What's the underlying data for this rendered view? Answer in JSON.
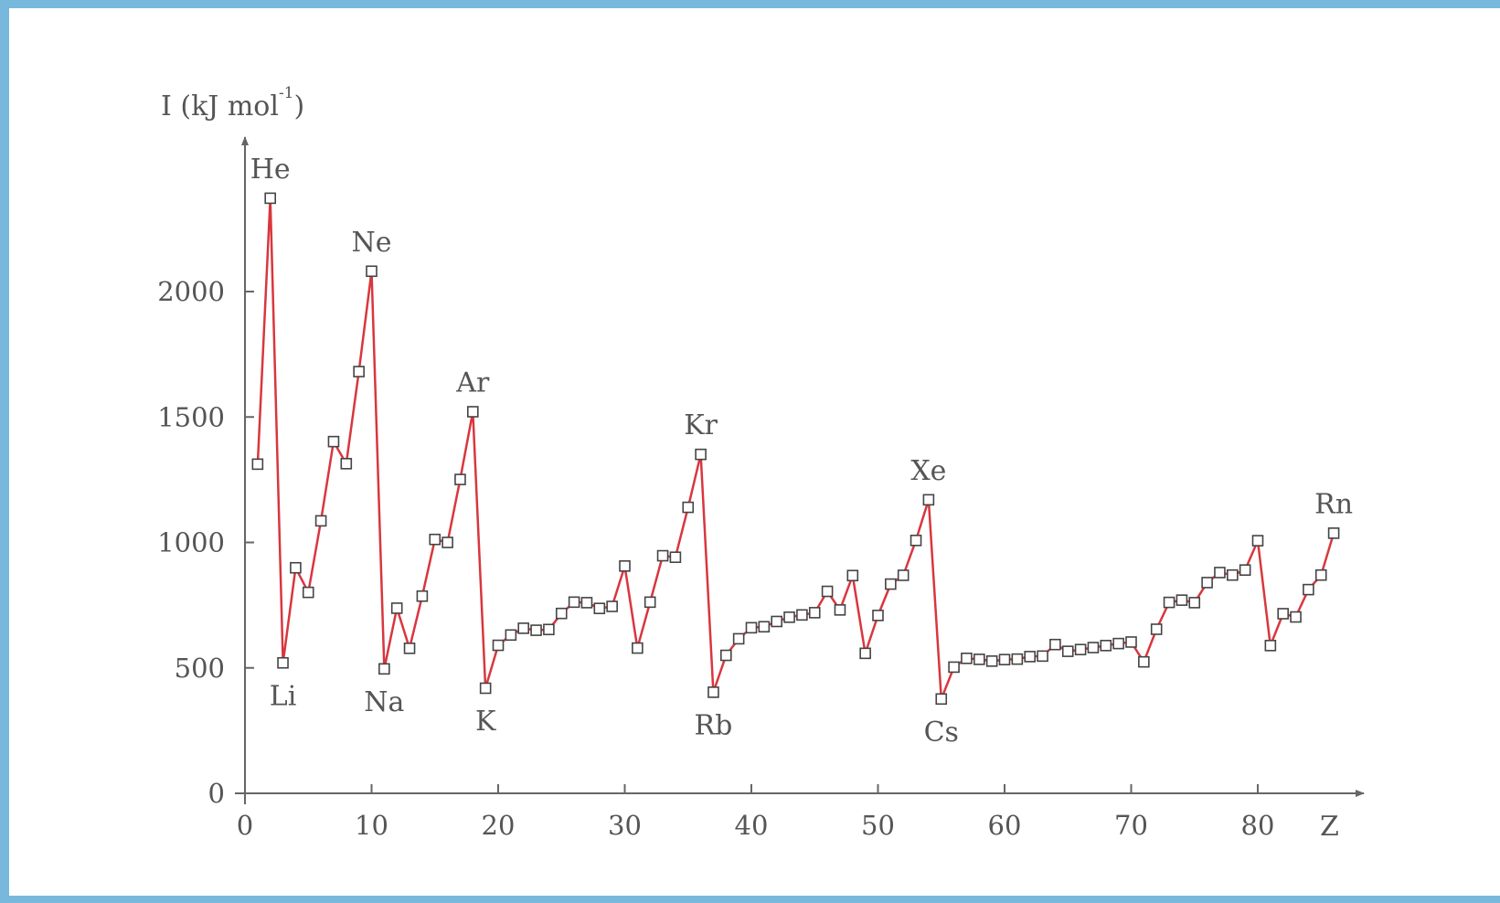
{
  "chart_data": {
    "type": "line",
    "ylabel_main": "I (kJ mol",
    "ylabel_sup": "-1",
    "ylabel_close": ")",
    "xlabel": "Z",
    "xlim": [
      0,
      88
    ],
    "ylim": [
      0,
      2600
    ],
    "x_ticks": [
      "0",
      "10",
      "20",
      "30",
      "40",
      "50",
      "60",
      "70",
      "80"
    ],
    "y_ticks": [
      "0",
      "500",
      "1000",
      "1500",
      "2000"
    ],
    "grid": false,
    "colors": {
      "line": "#d9363e",
      "marker_stroke": "#444444",
      "marker_fill": "#ffffff",
      "axis": "#666666"
    },
    "annotations": [
      {
        "text": "He",
        "x": 2,
        "y": 2372,
        "pos": "above"
      },
      {
        "text": "Li",
        "x": 3,
        "y": 520,
        "pos": "below"
      },
      {
        "text": "Ne",
        "x": 10,
        "y": 2081,
        "pos": "above"
      },
      {
        "text": "Na",
        "x": 11,
        "y": 496,
        "pos": "below"
      },
      {
        "text": "Ar",
        "x": 18,
        "y": 1521,
        "pos": "above"
      },
      {
        "text": "K",
        "x": 19,
        "y": 419,
        "pos": "below"
      },
      {
        "text": "Kr",
        "x": 36,
        "y": 1351,
        "pos": "above"
      },
      {
        "text": "Rb",
        "x": 37,
        "y": 403,
        "pos": "below"
      },
      {
        "text": "Xe",
        "x": 54,
        "y": 1170,
        "pos": "above"
      },
      {
        "text": "Cs",
        "x": 55,
        "y": 376,
        "pos": "below"
      },
      {
        "text": "Rn",
        "x": 86,
        "y": 1037,
        "pos": "above"
      }
    ],
    "series": [
      {
        "x": [
          1,
          2,
          3,
          4,
          5,
          6,
          7,
          8,
          9,
          10,
          11,
          12,
          13,
          14,
          15,
          16,
          17,
          18,
          19,
          20,
          21,
          22,
          23,
          24,
          25,
          26,
          27,
          28,
          29,
          30,
          31,
          32,
          33,
          34,
          35,
          36,
          37,
          38,
          39,
          40,
          41,
          42,
          43,
          44,
          45,
          46,
          47,
          48,
          49,
          50,
          51,
          52,
          53,
          54,
          55,
          56,
          57,
          58,
          59,
          60,
          61,
          62,
          63,
          64,
          65,
          66,
          67,
          68,
          69,
          70,
          71,
          72,
          73,
          74,
          75,
          76,
          77,
          78,
          79,
          80,
          81,
          82,
          83,
          84,
          85,
          86
        ],
        "y": [
          1312,
          2372,
          520,
          899,
          801,
          1086,
          1402,
          1314,
          1681,
          2081,
          496,
          738,
          578,
          786,
          1012,
          1000,
          1251,
          1521,
          419,
          590,
          631,
          658,
          650,
          653,
          717,
          762,
          760,
          737,
          745,
          906,
          579,
          762,
          947,
          941,
          1140,
          1351,
          403,
          550,
          616,
          660,
          664,
          685,
          702,
          711,
          720,
          805,
          731,
          868,
          558,
          709,
          834,
          869,
          1008,
          1170,
          376,
          503,
          538,
          534,
          527,
          533,
          535,
          545,
          547,
          593,
          566,
          573,
          581,
          589,
          597,
          603,
          524,
          654,
          761,
          770,
          760,
          840,
          880,
          870,
          890,
          1007,
          589,
          716,
          703,
          812,
          870,
          1037
        ]
      }
    ]
  }
}
